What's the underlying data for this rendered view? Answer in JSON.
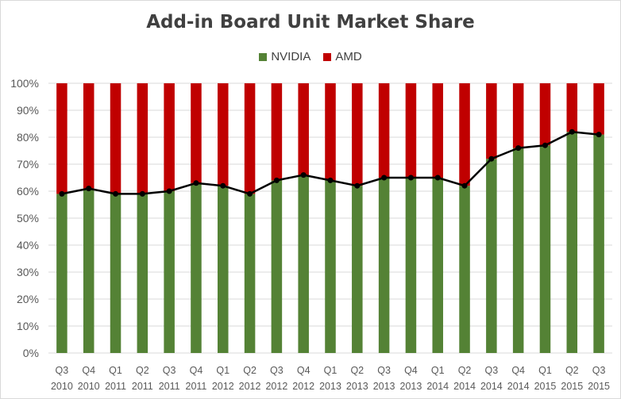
{
  "chart_data": {
    "type": "bar",
    "stacked": true,
    "title": "Add-in Board Unit Market Share",
    "legend_position": "top",
    "grid": true,
    "ylim": [
      0,
      100
    ],
    "y_ticks": [
      "0%",
      "10%",
      "20%",
      "30%",
      "40%",
      "50%",
      "60%",
      "70%",
      "80%",
      "90%",
      "100%"
    ],
    "categories": [
      {
        "q": "Q3",
        "year": "2010"
      },
      {
        "q": "Q4",
        "year": "2010"
      },
      {
        "q": "Q1",
        "year": "2011"
      },
      {
        "q": "Q2",
        "year": "2011"
      },
      {
        "q": "Q3",
        "year": "2011"
      },
      {
        "q": "Q4",
        "year": "2011"
      },
      {
        "q": "Q1",
        "year": "2012"
      },
      {
        "q": "Q2",
        "year": "2012"
      },
      {
        "q": "Q3",
        "year": "2012"
      },
      {
        "q": "Q4",
        "year": "2012"
      },
      {
        "q": "Q1",
        "year": "2013"
      },
      {
        "q": "Q2",
        "year": "2013"
      },
      {
        "q": "Q3",
        "year": "2013"
      },
      {
        "q": "Q4",
        "year": "2013"
      },
      {
        "q": "Q1",
        "year": "2014"
      },
      {
        "q": "Q2",
        "year": "2014"
      },
      {
        "q": "Q3",
        "year": "2014"
      },
      {
        "q": "Q4",
        "year": "2014"
      },
      {
        "q": "Q1",
        "year": "2015"
      },
      {
        "q": "Q2",
        "year": "2015"
      },
      {
        "q": "Q3",
        "year": "2015"
      }
    ],
    "series": [
      {
        "name": "NVIDIA",
        "color": "#548235",
        "values": [
          59,
          61,
          59,
          59,
          60,
          63,
          62,
          59,
          64,
          66,
          64,
          62,
          65,
          65,
          65,
          62,
          72,
          76,
          77,
          82,
          81
        ]
      },
      {
        "name": "AMD",
        "color": "#c00000",
        "values": [
          41,
          39,
          41,
          41,
          40,
          37,
          38,
          41,
          36,
          34,
          36,
          38,
          35,
          35,
          35,
          38,
          28,
          24,
          23,
          18,
          19
        ]
      }
    ],
    "line_overlay": {
      "series": "NVIDIA",
      "color": "#000000",
      "marker": "circle"
    }
  }
}
